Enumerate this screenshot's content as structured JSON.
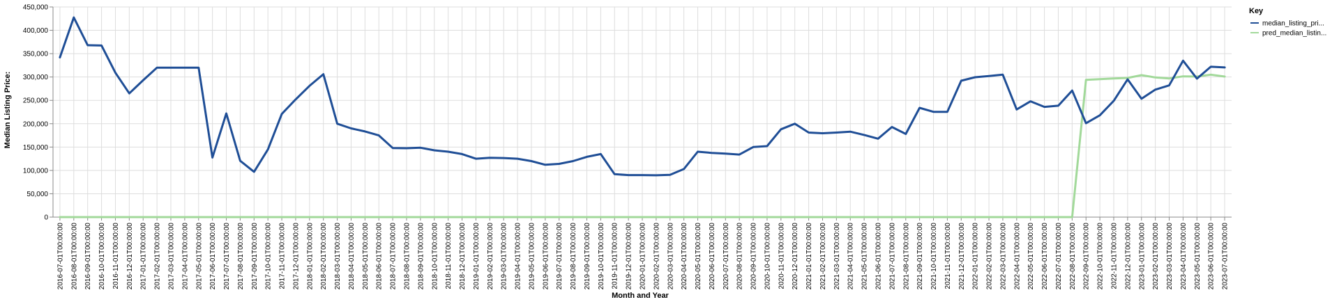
{
  "chart_data": {
    "type": "line",
    "xlabel": "Month and Year",
    "ylabel": "Median Listing Price:",
    "ylim": [
      0,
      450000
    ],
    "y_ticks": [
      "0",
      "50,000",
      "100,000",
      "150,000",
      "200,000",
      "250,000",
      "300,000",
      "350,000",
      "400,000",
      "450,000"
    ],
    "grid": true,
    "legend": {
      "title": "Key",
      "placement": "right",
      "entries": [
        "median_listing_pri...",
        "pred_median_listin..."
      ]
    },
    "x": [
      "2016-07-01T00:00:00",
      "2016-08-01T00:00:00",
      "2016-09-01T00:00:00",
      "2016-10-01T00:00:00",
      "2016-11-01T00:00:00",
      "2016-12-01T00:00:00",
      "2017-01-01T00:00:00",
      "2017-02-01T00:00:00",
      "2017-03-01T00:00:00",
      "2017-04-01T00:00:00",
      "2017-05-01T00:00:00",
      "2017-06-01T00:00:00",
      "2017-07-01T00:00:00",
      "2017-08-01T00:00:00",
      "2017-09-01T00:00:00",
      "2017-10-01T00:00:00",
      "2017-11-01T00:00:00",
      "2017-12-01T00:00:00",
      "2018-01-01T00:00:00",
      "2018-02-01T00:00:00",
      "2018-03-01T00:00:00",
      "2018-04-01T00:00:00",
      "2018-05-01T00:00:00",
      "2018-06-01T00:00:00",
      "2018-07-01T00:00:00",
      "2018-08-01T00:00:00",
      "2018-09-01T00:00:00",
      "2018-10-01T00:00:00",
      "2018-11-01T00:00:00",
      "2018-12-01T00:00:00",
      "2019-01-01T00:00:00",
      "2019-02-01T00:00:00",
      "2019-03-01T00:00:00",
      "2019-04-01T00:00:00",
      "2019-05-01T00:00:00",
      "2019-06-01T00:00:00",
      "2019-07-01T00:00:00",
      "2019-08-01T00:00:00",
      "2019-09-01T00:00:00",
      "2019-10-01T00:00:00",
      "2019-11-01T00:00:00",
      "2019-12-01T00:00:00",
      "2020-01-01T00:00:00",
      "2020-02-01T00:00:00",
      "2020-03-01T00:00:00",
      "2020-04-01T00:00:00",
      "2020-05-01T00:00:00",
      "2020-06-01T00:00:00",
      "2020-07-01T00:00:00",
      "2020-08-01T00:00:00",
      "2020-09-01T00:00:00",
      "2020-10-01T00:00:00",
      "2020-11-01T00:00:00",
      "2020-12-01T00:00:00",
      "2021-01-01T00:00:00",
      "2021-02-01T00:00:00",
      "2021-03-01T00:00:00",
      "2021-04-01T00:00:00",
      "2021-05-01T00:00:00",
      "2021-06-01T00:00:00",
      "2021-07-01T00:00:00",
      "2021-08-01T00:00:00",
      "2021-09-01T00:00:00",
      "2021-10-01T00:00:00",
      "2021-11-01T00:00:00",
      "2021-12-01T00:00:00",
      "2022-01-01T00:00:00",
      "2022-02-01T00:00:00",
      "2022-03-01T00:00:00",
      "2022-04-01T00:00:00",
      "2022-05-01T00:00:00",
      "2022-06-01T00:00:00",
      "2022-07-01T00:00:00",
      "2022-08-01T00:00:00",
      "2022-09-01T00:00:00",
      "2022-10-01T00:00:00",
      "2022-11-01T00:00:00",
      "2022-12-01T00:00:00",
      "2023-01-01T00:00:00",
      "2023-02-01T00:00:00",
      "2023-03-01T00:00:00",
      "2023-04-01T00:00:00",
      "2023-05-01T00:00:00",
      "2023-06-01T00:00:00",
      "2023-07-01T00:00:00"
    ],
    "series": [
      {
        "name": "median_listing_pri...",
        "color": "#1f4e96",
        "values": [
          342000,
          427500,
          368000,
          367500,
          309000,
          265000,
          293000,
          320000,
          320000,
          320000,
          320000,
          127500,
          222000,
          120500,
          97000,
          145000,
          221000,
          252000,
          281000,
          306000,
          200000,
          190000,
          183500,
          175000,
          148000,
          147500,
          148500,
          143000,
          140000,
          135000,
          125000,
          127000,
          126500,
          125000,
          120000,
          112000,
          114000,
          120000,
          129000,
          135000,
          92000,
          90000,
          90000,
          89500,
          90500,
          103000,
          140000,
          137500,
          136000,
          134000,
          150000,
          152000,
          188000,
          200000,
          181000,
          179500,
          181000,
          183000,
          176000,
          168000,
          193000,
          178000,
          234000,
          225500,
          225500,
          292000,
          299500,
          302000,
          305000,
          230500,
          248000,
          236000,
          238500,
          271000,
          201000,
          218000,
          249000,
          295000,
          253500,
          273000,
          282000,
          335000,
          296500,
          322000,
          320500
        ]
      },
      {
        "name": "pred_median_listin...",
        "color": "#a2d99a",
        "values": [
          0,
          0,
          0,
          0,
          0,
          0,
          0,
          0,
          0,
          0,
          0,
          0,
          0,
          0,
          0,
          0,
          0,
          0,
          0,
          0,
          0,
          0,
          0,
          0,
          0,
          0,
          0,
          0,
          0,
          0,
          0,
          0,
          0,
          0,
          0,
          0,
          0,
          0,
          0,
          0,
          0,
          0,
          0,
          0,
          0,
          0,
          0,
          0,
          0,
          0,
          0,
          0,
          0,
          0,
          0,
          0,
          0,
          0,
          0,
          0,
          0,
          0,
          0,
          0,
          0,
          0,
          0,
          0,
          0,
          0,
          0,
          0,
          0,
          0,
          294000,
          295500,
          297000,
          298000,
          304000,
          299000,
          297000,
          301500,
          301000,
          305000,
          301000
        ]
      }
    ]
  }
}
